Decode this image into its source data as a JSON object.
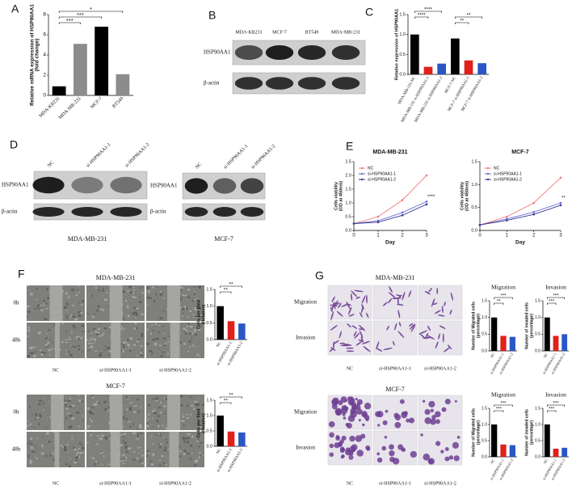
{
  "panel_labels": [
    "A",
    "B",
    "C",
    "D",
    "E",
    "F",
    "G"
  ],
  "blots": {
    "b": {
      "lanes": [
        "MDA-KB231",
        "MCF-7",
        "BT549",
        "MDA-MB-231"
      ],
      "rows": [
        "HSP90AA1",
        "β-actin"
      ]
    },
    "d": [
      {
        "lanes": [
          "NC",
          "si-HSP90AA1-1",
          "si-HSP90AA1-2"
        ],
        "rows": [
          "HSP90AA1",
          "β-actin"
        ],
        "caption": "MDA-MB-231"
      },
      {
        "lanes": [
          "NC",
          "si-HSP90AA1-1",
          "si-HSP90AA1-2"
        ],
        "rows": [
          "HSP90AA1",
          "β-actin"
        ],
        "caption": "MCF-7"
      }
    ]
  },
  "assays": {
    "f": [
      {
        "title": "MDA-MB-231",
        "rows": [
          "0h",
          "48h"
        ],
        "columns": [
          "NC",
          "si-HSP90AA1-1",
          "si-HSP90AA1-2"
        ]
      },
      {
        "title": "MCF-7",
        "rows": [
          "0h",
          "48h"
        ],
        "columns": [
          "NC",
          "si-HSP90AA1-1",
          "si-HSP90AA1-2"
        ]
      }
    ],
    "g": [
      {
        "title": "MDA-MB-231",
        "rows": [
          "Migration",
          "Invasion"
        ],
        "columns": [
          "NC",
          "si-HSP90AA1-1",
          "si-HSP90AA1-2"
        ]
      },
      {
        "title": "MCF-7",
        "rows": [
          "Migration",
          "Invasion"
        ],
        "columns": [
          "NC",
          "si-HSP90AA1-1",
          "si-HSP90AA1-2"
        ]
      }
    ]
  },
  "chart_data": [
    {
      "type": "bar",
      "y_label": [
        "Relative mRNA expression of HSP90AA1",
        "(fold change)"
      ],
      "categories": [
        "MDA-KB231",
        "MDA-MB-231",
        "MCF-7",
        "BT549"
      ],
      "values": [
        0.9,
        5.1,
        6.8,
        2.1
      ],
      "colors": [
        "#000000",
        "#8c8c8c",
        "#000000",
        "#8c8c8c"
      ],
      "ylim": [
        0,
        8
      ],
      "yticks": [
        0,
        2,
        4,
        6,
        8
      ],
      "annotations": [
        "***",
        "***",
        "*"
      ]
    },
    {
      "type": "bar",
      "y_label": [
        "Relative expression of HSP90AA1"
      ],
      "categories": [
        "MDA-MB-231-NC",
        "MDA-MB-231 si-HSP90AA1-1",
        "MDA-MB-231 si-HSP90AA1-2",
        "MCF-7-NC",
        "MCF-7 si-HSP90AA1-1",
        "MCF-7 si-HSP90AA1-2"
      ],
      "values": [
        1.0,
        0.19,
        0.27,
        0.9,
        0.35,
        0.28
      ],
      "colors": [
        "#000000",
        "#e0201b",
        "#2a56c6",
        "#000000",
        "#e0201b",
        "#2a56c6"
      ],
      "ylim": [
        0,
        1.5
      ],
      "yticks": [
        {
          "value": 0,
          "label": "0.0"
        },
        0.5,
        {
          "value": 1,
          "label": "1.0"
        },
        1.5
      ],
      "annotations": [
        "****",
        "****",
        "**",
        "**"
      ]
    },
    {
      "type": "line",
      "title": "MDA-MB-231",
      "x_label": "Day",
      "y_label": [
        "Cells viability",
        "(OD at 450nm)"
      ],
      "x": [
        0,
        1,
        2,
        3
      ],
      "xlim": [
        0,
        3
      ],
      "xticks": [
        0,
        1,
        2,
        3
      ],
      "ylim": [
        0,
        2.5
      ],
      "yticks": [
        {
          "value": 0,
          "label": "0.0"
        },
        0.5,
        {
          "value": 1,
          "label": "1.0"
        },
        1.5,
        {
          "value": 2,
          "label": "2.0"
        },
        2.5
      ],
      "series": [
        {
          "name": "NC",
          "color": "#f07a78",
          "values": [
            0.25,
            0.5,
            1.1,
            2.0
          ]
        },
        {
          "name": "si-HSP90AA1-1",
          "color": "#6c6cd8",
          "values": [
            0.25,
            0.35,
            0.65,
            1.05
          ]
        },
        {
          "name": "si-HSP90AA1-2",
          "color": "#35358f",
          "values": [
            0.25,
            0.3,
            0.55,
            0.95
          ]
        }
      ],
      "annotations": [
        "****"
      ]
    },
    {
      "type": "line",
      "title": "MCF-7",
      "x_label": "Day",
      "y_label": [
        "Cells viability",
        "(OD at 450nm)"
      ],
      "x": [
        0,
        1,
        2,
        3
      ],
      "xlim": [
        0,
        3
      ],
      "xticks": [
        0,
        1,
        2,
        3
      ],
      "ylim": [
        0,
        1.5
      ],
      "yticks": [
        {
          "value": 0,
          "label": "0.0"
        },
        0.5,
        {
          "value": 1,
          "label": "1.0"
        },
        1.5
      ],
      "series": [
        {
          "name": "NC",
          "color": "#f07a78",
          "values": [
            0.12,
            0.3,
            0.6,
            1.15
          ]
        },
        {
          "name": "si-HSP90AA1-1",
          "color": "#6c6cd8",
          "values": [
            0.12,
            0.25,
            0.4,
            0.6
          ]
        },
        {
          "name": "si-HSP90AA1-2",
          "color": "#35358f",
          "values": [
            0.12,
            0.22,
            0.35,
            0.55
          ]
        }
      ],
      "annotations": [
        "**"
      ]
    },
    {
      "type": "bar",
      "y_label": [
        "Cells per filed",
        "(Relative)"
      ],
      "categories": [
        "NC",
        "si-HSP90AA1-1",
        "si-HSP90AA1-2"
      ],
      "values": [
        1.0,
        0.55,
        0.48
      ],
      "colors": [
        "#000000",
        "#e0201b",
        "#2a56c6"
      ],
      "ylim": [
        0,
        1.5
      ],
      "yticks": [
        {
          "value": 0,
          "label": "0.0"
        },
        0.5,
        {
          "value": 1,
          "label": "1.0"
        },
        1.5
      ],
      "annotations": [
        "**",
        "**"
      ]
    },
    {
      "type": "bar",
      "y_label": [
        "Cells per filed",
        "(Relative)"
      ],
      "categories": [
        "NC",
        "si-HSP90AA1-1",
        "si-HSP90AA1-2"
      ],
      "values": [
        1.0,
        0.48,
        0.45
      ],
      "colors": [
        "#000000",
        "#e0201b",
        "#2a56c6"
      ],
      "ylim": [
        0,
        1.5
      ],
      "yticks": [
        {
          "value": 0,
          "label": "0.0"
        },
        0.5,
        {
          "value": 1,
          "label": "1.0"
        },
        1.5
      ],
      "annotations": [
        "**",
        "**"
      ]
    },
    {
      "type": "bar",
      "title": "Migration",
      "y_label": [
        "Number of Migrated cells",
        "(percentage)"
      ],
      "categories": [
        "NC",
        "si-HSP90AA1-1",
        "si-HSP90AA1-2"
      ],
      "values": [
        1.0,
        0.45,
        0.42
      ],
      "colors": [
        "#000000",
        "#e0201b",
        "#2a56c6"
      ],
      "ylim": [
        0,
        1.5
      ],
      "yticks": [
        {
          "value": 0,
          "label": "0.0"
        },
        0.5,
        {
          "value": 1,
          "label": "1.0"
        },
        1.5
      ],
      "annotations": [
        "**",
        "***"
      ]
    },
    {
      "type": "bar",
      "title": "Invasion",
      "y_label": [
        "Number of invaded cells",
        "(percentage)"
      ],
      "categories": [
        "NC",
        "si-HSP90AA1-1",
        "si-HSP90AA1-2"
      ],
      "values": [
        1.0,
        0.45,
        0.5
      ],
      "colors": [
        "#000000",
        "#e0201b",
        "#2a56c6"
      ],
      "ylim": [
        0,
        1.5
      ],
      "yticks": [
        {
          "value": 0,
          "label": "0.0"
        },
        0.5,
        {
          "value": 1,
          "label": "1.0"
        },
        1.5
      ],
      "annotations": [
        "***",
        "***"
      ]
    },
    {
      "type": "bar",
      "title": "Migration",
      "y_label": [
        "Number of Migrated cells",
        "(percentage)"
      ],
      "categories": [
        "NC",
        "si-HSP90AA1-1",
        "si-HSP90AA1-2"
      ],
      "values": [
        1.0,
        0.38,
        0.36
      ],
      "colors": [
        "#000000",
        "#e0201b",
        "#2a56c6"
      ],
      "ylim": [
        0,
        1.5
      ],
      "yticks": [
        {
          "value": 0,
          "label": "0.0"
        },
        0.5,
        {
          "value": 1,
          "label": "1.0"
        },
        1.5
      ],
      "annotations": [
        "***",
        "***"
      ]
    },
    {
      "type": "bar",
      "title": "Invasion",
      "y_label": [
        "Number of invaded cells",
        "(percentage)"
      ],
      "categories": [
        "NC",
        "si-HSP90AA1-1",
        "si-HSP90AA1-2"
      ],
      "values": [
        1.0,
        0.25,
        0.28
      ],
      "colors": [
        "#000000",
        "#e0201b",
        "#2a56c6"
      ],
      "ylim": [
        0,
        1.5
      ],
      "yticks": [
        {
          "value": 0,
          "label": "0.0"
        },
        0.5,
        {
          "value": 1,
          "label": "1.0"
        },
        1.5
      ],
      "annotations": [
        "***",
        "***"
      ]
    }
  ]
}
